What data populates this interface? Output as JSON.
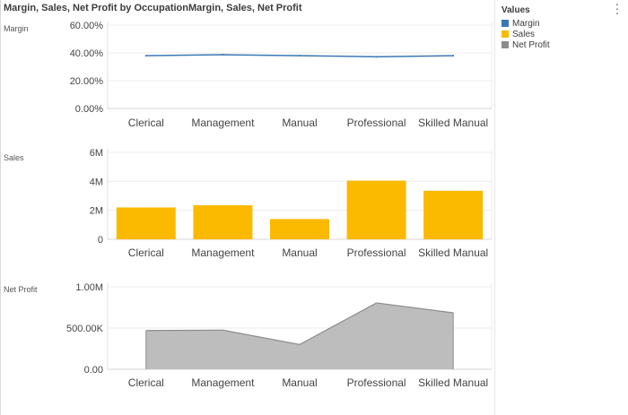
{
  "title": "Margin, Sales, Net Profit by OccupationMargin, Sales, Net Profit",
  "legend": {
    "title": "Values",
    "items": [
      {
        "label": "Margin",
        "color": "#3a78b4"
      },
      {
        "label": "Sales",
        "color": "#fbb900"
      },
      {
        "label": "Net Profit",
        "color": "#8c8c8c"
      }
    ]
  },
  "more_icon": "more-vertical-icon",
  "chart_data": [
    {
      "type": "line",
      "panel_label": "Margin",
      "categories": [
        "Clerical",
        "Management",
        "Manual",
        "Professional",
        "Skilled Manual"
      ],
      "series": [
        {
          "name": "Margin",
          "color": "#3a78b4",
          "values": [
            0.38,
            0.387,
            0.38,
            0.372,
            0.38
          ]
        }
      ],
      "ylim": [
        0,
        0.6
      ],
      "yticks": [
        0,
        0.2,
        0.4,
        0.6
      ],
      "ytick_labels": [
        "0.00%",
        "20.00%",
        "40.00%",
        "60.00%"
      ],
      "grid": true
    },
    {
      "type": "bar",
      "panel_label": "Sales",
      "categories": [
        "Clerical",
        "Management",
        "Manual",
        "Professional",
        "Skilled Manual"
      ],
      "series": [
        {
          "name": "Sales",
          "color": "#fbb900",
          "values": [
            2200000,
            2350000,
            1400000,
            4050000,
            3350000
          ]
        }
      ],
      "ylim": [
        0,
        6000000
      ],
      "yticks": [
        0,
        2000000,
        4000000,
        6000000
      ],
      "ytick_labels": [
        "0",
        "2M",
        "4M",
        "6M"
      ],
      "grid": true
    },
    {
      "type": "area",
      "panel_label": "Net Profit",
      "categories": [
        "Clerical",
        "Management",
        "Manual",
        "Professional",
        "Skilled Manual"
      ],
      "series": [
        {
          "name": "Net Profit",
          "color": "#8c8c8c",
          "fill": "#bdbdbd",
          "values": [
            470000,
            475000,
            300000,
            805000,
            685000
          ]
        }
      ],
      "ylim": [
        0,
        1000000
      ],
      "yticks": [
        0,
        500000,
        1000000
      ],
      "ytick_labels": [
        "0.00",
        "500.00K",
        "1.00M"
      ],
      "grid": true
    }
  ]
}
